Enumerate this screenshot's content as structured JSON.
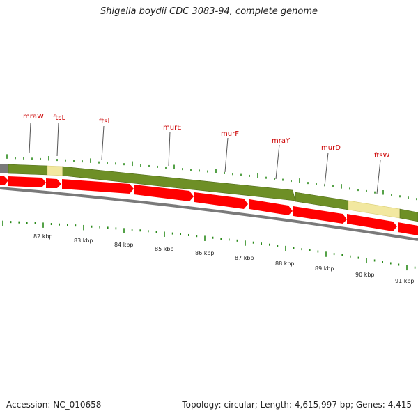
{
  "title": "Shigella boydii CDC 3083-94, complete genome",
  "footer": {
    "accession": "Accession: NC_010658",
    "summary": "Topology: circular; Length: 4,615,997 bp; Genes: 4,415"
  },
  "colors": {
    "backbone": "#7a7a7a",
    "gene_block": "#6e8f26",
    "gene_block_light": "#f2e8a0",
    "arrow": "#ff0000",
    "tick": "#2a8a1a",
    "label": "#cc0000"
  },
  "gene_labels": [
    "mraW",
    "ftsL",
    "ftsI",
    "murE",
    "murF",
    "mraY",
    "murD",
    "ftsW"
  ],
  "kbp_labels": [
    "82 kbp",
    "83 kbp",
    "84 kbp",
    "85 kbp",
    "86 kbp",
    "87 kbp",
    "88 kbp",
    "89 kbp",
    "90 kbp",
    "91 kbp"
  ]
}
